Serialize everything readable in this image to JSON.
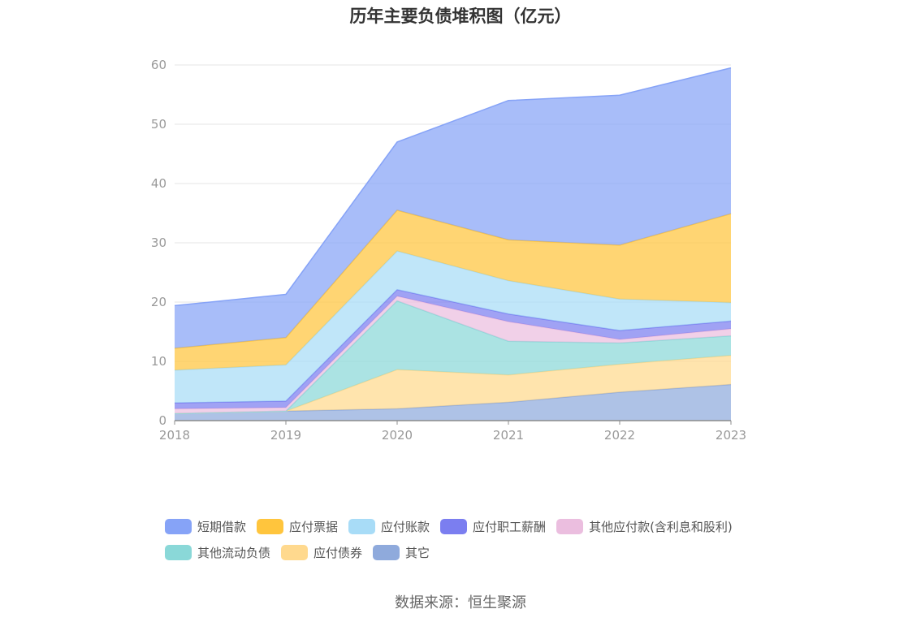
{
  "title": "历年主要负债堆积图（亿元）",
  "source": "数据来源：恒生聚源",
  "chart_data": {
    "type": "area",
    "stacked": true,
    "title": "历年主要负债堆积图（亿元）",
    "x": [
      "2018",
      "2019",
      "2020",
      "2021",
      "2022",
      "2023"
    ],
    "ylim": [
      0,
      60
    ],
    "yticks": [
      "0",
      "10",
      "20",
      "30",
      "40",
      "50",
      "60"
    ],
    "grid": true,
    "legend_position": "bottom",
    "series": [
      {
        "name": "其它",
        "color": "#8faadc",
        "values": [
          1.2,
          1.6,
          2.0,
          3.1,
          4.8,
          6.1
        ]
      },
      {
        "name": "应付债券",
        "color": "#ffd98e",
        "values": [
          0.0,
          0.0,
          6.6,
          4.6,
          4.7,
          4.9
        ]
      },
      {
        "name": "其他流动负债",
        "color": "#8ad8d8",
        "values": [
          0.0,
          0.0,
          11.6,
          5.7,
          3.6,
          3.3
        ]
      },
      {
        "name": "其他应付款(含利息和股利)",
        "color": "#ebbedf",
        "values": [
          0.8,
          0.6,
          0.8,
          3.3,
          0.6,
          1.2
        ]
      },
      {
        "name": "应付职工薪酬",
        "color": "#7b7ef0",
        "values": [
          1.0,
          1.1,
          1.1,
          1.3,
          1.5,
          1.3
        ]
      },
      {
        "name": "应付账款",
        "color": "#a8dcf7",
        "values": [
          5.5,
          6.1,
          6.5,
          5.6,
          5.3,
          3.1
        ]
      },
      {
        "name": "应付票据",
        "color": "#ffc53d",
        "values": [
          3.7,
          4.6,
          6.9,
          6.9,
          9.1,
          15.0
        ]
      },
      {
        "name": "短期借款",
        "color": "#86a3f7",
        "values": [
          7.2,
          7.3,
          11.5,
          23.5,
          25.3,
          24.6
        ]
      }
    ]
  },
  "legend": {
    "row1": [
      {
        "label": "短期借款",
        "color": "#86a3f7"
      },
      {
        "label": "应付票据",
        "color": "#ffc53d"
      },
      {
        "label": "应付账款",
        "color": "#a8dcf7"
      },
      {
        "label": "应付职工薪酬",
        "color": "#7b7ef0"
      },
      {
        "label": "其他应付款(含利息和股利)",
        "color": "#ebbedf"
      }
    ],
    "row2": [
      {
        "label": "其他流动负债",
        "color": "#8ad8d8"
      },
      {
        "label": "应付债券",
        "color": "#ffd98e"
      },
      {
        "label": "其它",
        "color": "#8faadc"
      }
    ]
  }
}
